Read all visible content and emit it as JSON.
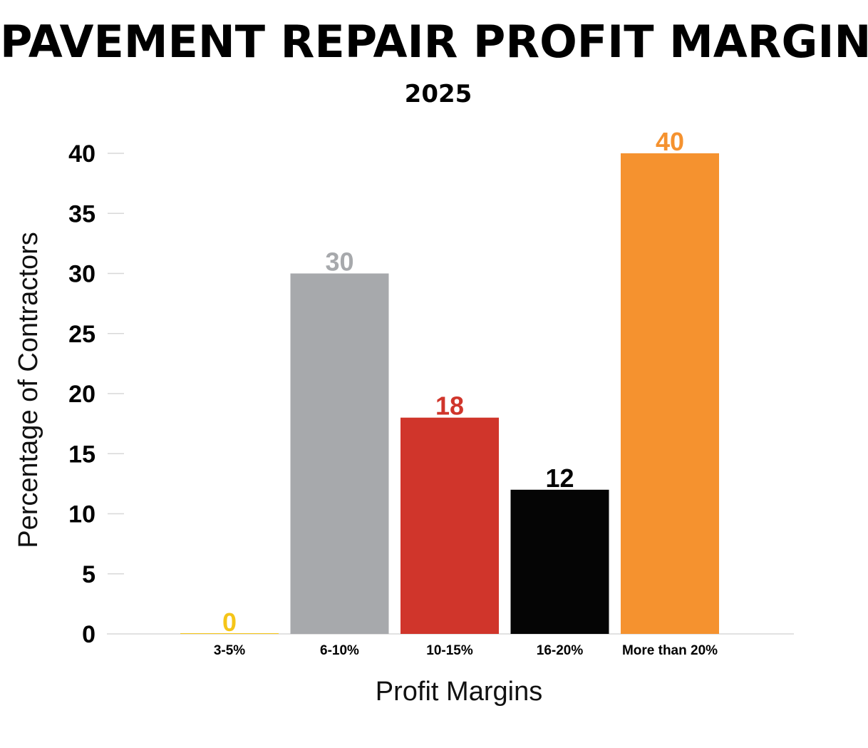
{
  "chart_data": {
    "type": "bar",
    "title": "PAVEMENT REPAIR PROFIT MARGINS",
    "subtitle": "2025",
    "xlabel": "Profit Margins",
    "ylabel": "Percentage of Contractors",
    "categories": [
      "3-5%",
      "6-10%",
      "10-15%",
      "16-20%",
      "More than 20%"
    ],
    "values": [
      0,
      30,
      18,
      12,
      40
    ],
    "data_labels": [
      "0",
      "30",
      "18",
      "12",
      "40"
    ],
    "bar_colors": [
      "#F5C518",
      "#A7A9AC",
      "#D0352B",
      "#050505",
      "#F5922F"
    ],
    "ylim": [
      0,
      40
    ],
    "yticks": [
      0,
      5,
      10,
      15,
      20,
      25,
      30,
      35,
      40
    ],
    "ytick_labels": [
      "0",
      "5",
      "10",
      "15",
      "20",
      "25",
      "30",
      "35",
      "40"
    ],
    "grid": false,
    "legend": "none"
  }
}
